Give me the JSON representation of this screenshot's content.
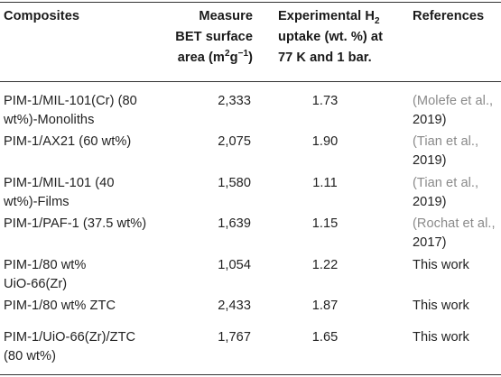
{
  "header": {
    "composites": "Composites",
    "bet_line1": "Measure",
    "bet_line2": "BET surface",
    "bet_line3a": "area (m",
    "bet_line3_sup1": "2",
    "bet_line3b": "g",
    "bet_line3_sup2": "−1",
    "bet_line3c": ")",
    "h2_line1a": "Experimental H",
    "h2_line1_sub": "2",
    "h2_line2": "uptake (wt. %) at",
    "h2_line3": "77 K and 1 bar.",
    "references": "References"
  },
  "rows": [
    {
      "composite_l1": "PIM-1/MIL-101(Cr) (80",
      "composite_l2": "wt%)-Monoliths",
      "bet": "2,333",
      "h2": "1.73",
      "ref_l1": "(Molefe et al.,",
      "ref_l2": "2019)"
    },
    {
      "composite_l1": "PIM-1/AX21 (60 wt%)",
      "composite_l2": "",
      "bet": "2,075",
      "h2": "1.90",
      "ref_l1": "(Tian et al.,",
      "ref_l2": "2019)"
    },
    {
      "composite_l1": "PIM-1/MIL-101 (40",
      "composite_l2": "wt%)-Films",
      "bet": "1,580",
      "h2": "1.11",
      "ref_l1": "(Tian et al.,",
      "ref_l2": "2019)"
    },
    {
      "composite_l1": "PIM-1/PAF-1 (37.5 wt%)",
      "composite_l2": "",
      "bet": "1,639",
      "h2": "1.15",
      "ref_l1": "(Rochat et al.,",
      "ref_l2": "2017)"
    },
    {
      "composite_l1": "PIM-1/80 wt%",
      "composite_l2": "UiO-66(Zr)",
      "bet": "1,054",
      "h2": "1.22",
      "ref_l1": "This work",
      "ref_l2": ""
    },
    {
      "composite_l1": "PIM-1/80 wt% ZTC",
      "composite_l2": "",
      "bet": "2,433",
      "h2": "1.87",
      "ref_l1": "This work",
      "ref_l2": ""
    },
    {
      "composite_l1": "PIM-1/UiO-66(Zr)/ZTC",
      "composite_l2": "(80 wt%)",
      "bet": "1,767",
      "h2": "1.65",
      "ref_l1": "This work",
      "ref_l2": ""
    }
  ]
}
